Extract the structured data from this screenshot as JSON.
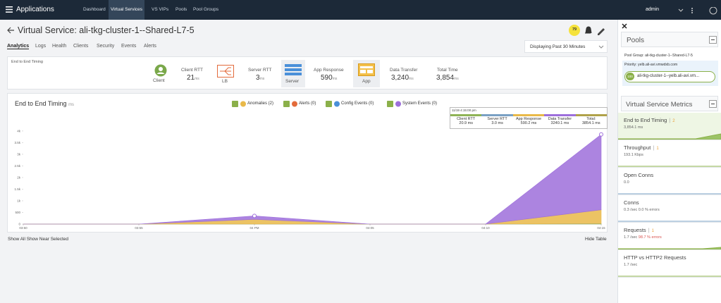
{
  "nav": {
    "brand": "Applications",
    "links": [
      "Dashboard",
      "Virtual Services",
      "VS VIPs",
      "Pools",
      "Pool Groups"
    ],
    "user": "admin"
  },
  "header": {
    "title": "Virtual Service: ali-tkg-cluster-1--Shared-L7-5",
    "badge": "79"
  },
  "tabs": [
    "Analytics",
    "Logs",
    "Health",
    "Clients",
    "Security",
    "Events",
    "Alerts"
  ],
  "time_range": "Displaying Past 30 Minutes",
  "timing": {
    "label": "End to End Timing",
    "client": "Client",
    "lb": "LB",
    "server": "Server",
    "app": "App",
    "metrics": [
      {
        "label": "Client RTT",
        "value": "21",
        "unit": "ms"
      },
      {
        "label": "Server RTT",
        "value": "3",
        "unit": "ms"
      },
      {
        "label": "App Response",
        "value": "590",
        "unit": "ms"
      },
      {
        "label": "Data Transfer",
        "value": "3,240",
        "unit": "ms"
      },
      {
        "label": "Total Time",
        "value": "3,854",
        "unit": "ms"
      }
    ]
  },
  "filters": [
    "Anomalies (2)",
    "Alerts (0)",
    "Config Events (0)",
    "System Events (0)"
  ],
  "tooltip": {
    "time": "11/19 4:15:00 pm",
    "rows": [
      {
        "label": "Client RTT",
        "value": "20.9",
        "unit": "ms"
      },
      {
        "label": "Server RTT",
        "value": "3.0",
        "unit": "ms"
      },
      {
        "label": "App Response",
        "value": "590.2",
        "unit": "ms"
      },
      {
        "label": "Data Transfer",
        "value": "3240.1",
        "unit": "ms"
      },
      {
        "label": "Total:",
        "value": "3854.1",
        "unit": "ms"
      }
    ]
  },
  "footer": {
    "left": "Show All Show Near Selected",
    "right": "Hide Table"
  },
  "chart_data": {
    "type": "area",
    "title": "End to End Timing",
    "unit": "ms",
    "stacked": true,
    "categories": [
      "03:50",
      "03:55",
      "04 PM",
      "04:05",
      "04:10",
      "04:15"
    ],
    "series": [
      {
        "name": "Client RTT",
        "color": "#8fb356",
        "values": [
          0,
          0,
          1,
          0,
          0,
          20.9
        ]
      },
      {
        "name": "Server RTT",
        "color": "#7aa0c4",
        "values": [
          0,
          0,
          0,
          0,
          0,
          3
        ]
      },
      {
        "name": "App Response",
        "color": "#e9b949",
        "values": [
          0,
          0,
          200,
          0,
          0,
          590.2
        ]
      },
      {
        "name": "Data Transfer",
        "color": "#9d6fdb",
        "values": [
          0,
          0,
          150,
          0,
          0,
          3240.1
        ]
      }
    ],
    "ylim": [
      0,
      4300
    ],
    "yticks": [
      0,
      500,
      {
        "value": 1000,
        "label": "1k"
      },
      {
        "value": 1500,
        "label": "1.5k"
      },
      {
        "value": 2000,
        "label": "2k"
      },
      {
        "value": 2500,
        "label": "2.5k"
      },
      {
        "value": 3000,
        "label": "3k"
      },
      {
        "value": 3500,
        "label": "3.5k"
      },
      {
        "value": 4000,
        "label": "4k"
      }
    ],
    "grid": false
  },
  "side": {
    "pools": "Pools",
    "pool_group": "Pool Group: ali-tkg-cluster-1--Shared-L7-5",
    "priority": "Priority: yelb.ali-avi.vmwdxb.com",
    "pool_pct": "100",
    "pool_name": "ali-tkg-cluster-1--yelb.ali-avi.vm...",
    "metrics_title": "Virtual Service Metrics",
    "metrics": [
      {
        "name": "End to End Timing",
        "anomalies": "2",
        "value": "3,854.1 ms"
      },
      {
        "name": "Throughput",
        "anomalies": "1",
        "value": "193.1 Kbps"
      },
      {
        "name": "Open Conns",
        "value": "0.0"
      },
      {
        "name": "Conns",
        "value": "0.3 /sec  0.0 % errors"
      },
      {
        "name": "Requests",
        "anomalies": "1",
        "value": "1.7 /sec",
        "errors": "98.7 % errors"
      },
      {
        "name": "HTTP vs HTTP2 Requests",
        "value": "1.7 /sec"
      }
    ]
  }
}
